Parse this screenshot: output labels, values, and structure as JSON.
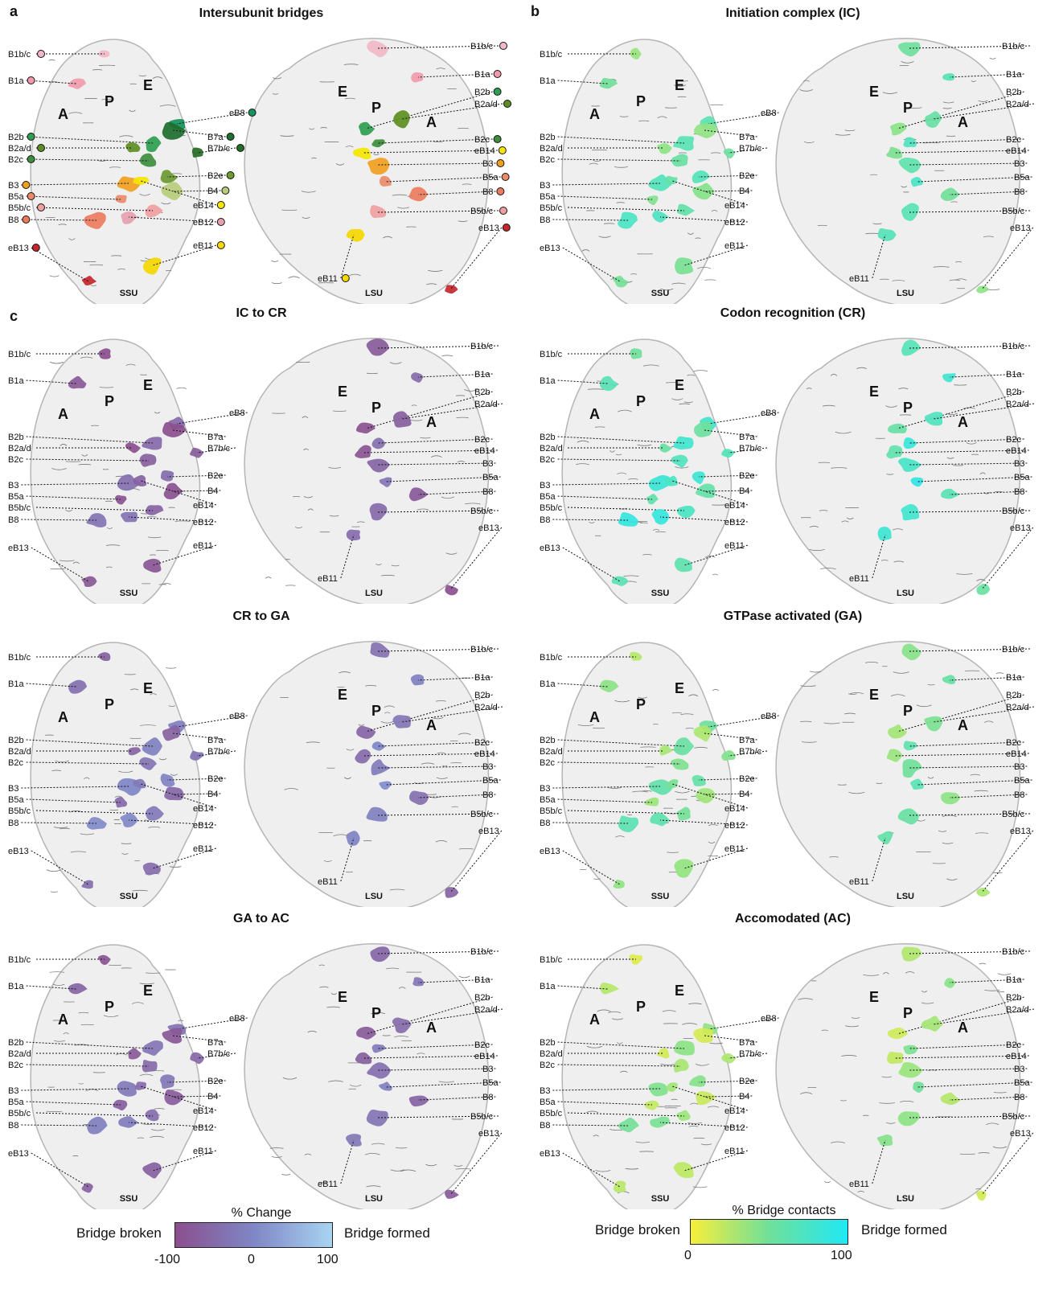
{
  "panel_letters": [
    "a",
    "b",
    "c"
  ],
  "panels": [
    {
      "title": "Intersubunit bridges",
      "mode": "categorical"
    },
    {
      "title": "Initiation complex (IC)",
      "mode": "contacts",
      "v": 0.55
    },
    {
      "title": "IC to CR",
      "mode": "change",
      "v": 0.15
    },
    {
      "title": "Codon recognition (CR)",
      "mode": "contacts",
      "v": 0.7
    },
    {
      "title": "CR to GA",
      "mode": "change",
      "v": 0.35
    },
    {
      "title": "GTPase activated (GA)",
      "mode": "contacts",
      "v": 0.45
    },
    {
      "title": "GA to AC",
      "mode": "change",
      "v": 0.25
    },
    {
      "title": "Accomodated (AC)",
      "mode": "contacts",
      "v": 0.3
    }
  ],
  "subunit_labels": {
    "ssu": "SSU",
    "lsu": "LSU"
  },
  "site_labels": [
    "A",
    "P",
    "E"
  ],
  "ssu_bridges": [
    "B1b/c",
    "B1a",
    "B2b",
    "B2a/d",
    "B2c",
    "B3",
    "B5a",
    "B5b/c",
    "B8",
    "eB13"
  ],
  "middle_left_labels": [
    "eB8",
    "B7a",
    "B7b/c",
    "B2e",
    "B4",
    "eB14",
    "eB12",
    "eB11"
  ],
  "lsu_bridges": [
    "B1b/c",
    "B1a",
    "B2b",
    "B2a/d",
    "B2c",
    "eB14",
    "B3",
    "B5a",
    "B8",
    "B5b/c",
    "eB13"
  ],
  "lsu_bottom_label": "eB11",
  "colors": {
    "B1b/c": "#f2b8c8",
    "B1a": "#f09aac",
    "B2b": "#2f9e50",
    "B2a/d": "#5c8f22",
    "B2c": "#3e8e3e",
    "B3": "#f0a020",
    "B5a": "#e98b6a",
    "B5b/c": "#f0a0a0",
    "B8": "#ec7c5e",
    "eB13": "#c4262c",
    "eB8": "#17915e",
    "B7a": "#1e6e2e",
    "B7b/c": "#256b25",
    "B2e": "#6b9a30",
    "B4": "#b8cc7a",
    "eB14": "#f5e600",
    "eB12": "#e6a0b0",
    "eB11": "#f5d800"
  },
  "colorbar_change": {
    "title": "% Change",
    "left": "Bridge broken",
    "right": "Bridge formed",
    "ticks": [
      "-100",
      "0",
      "100"
    ],
    "color_low": "#8b4f8e",
    "color_mid": "#7f86c6",
    "color_high": "#a8d4f2"
  },
  "colorbar_contacts": {
    "title": "% Bridge contacts",
    "left": "Bridge broken",
    "right": "Bridge formed",
    "ticks": [
      "0",
      "100"
    ],
    "color_low": "#f7ee3a",
    "color_mid": "#70e09a",
    "color_high": "#20e8f4"
  }
}
